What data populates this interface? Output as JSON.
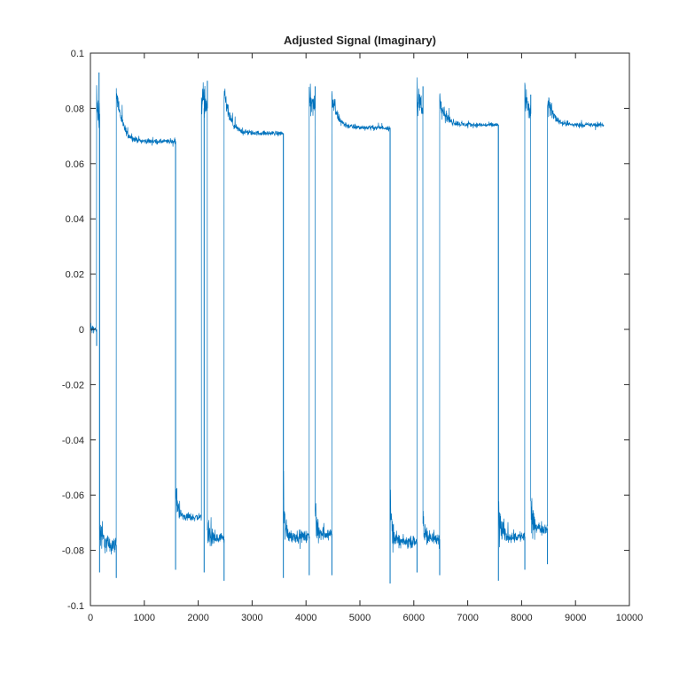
{
  "chart_data": {
    "type": "line",
    "title": "Adjusted Signal (Imaginary)",
    "xlabel": "",
    "ylabel": "",
    "xlim": [
      0,
      10000
    ],
    "ylim": [
      -0.1,
      0.1
    ],
    "x_ticks": [
      0,
      1000,
      2000,
      3000,
      4000,
      5000,
      6000,
      7000,
      8000,
      9000,
      10000
    ],
    "x_tick_labels": [
      "0",
      "1000",
      "2000",
      "3000",
      "4000",
      "5000",
      "6000",
      "7000",
      "8000",
      "9000",
      "10000"
    ],
    "y_ticks": [
      -0.1,
      -0.08,
      -0.06,
      -0.04,
      -0.02,
      0,
      0.02,
      0.04,
      0.06,
      0.08,
      0.1
    ],
    "y_tick_labels": [
      "-0.1",
      "-0.08",
      "-0.06",
      "-0.04",
      "-0.02",
      "0",
      "0.02",
      "0.04",
      "0.06",
      "0.08",
      "0.1"
    ],
    "grid": false,
    "line_color": "#0072BD",
    "series": [
      {
        "segments": [
          {
            "x_start": 0,
            "x_end": 115,
            "level": 0.0,
            "start": 0.0,
            "noise": 0.001
          },
          {
            "x_start": 115,
            "x_end": 170,
            "level": 0.078,
            "start": 0.08,
            "noise": 0.003
          },
          {
            "x_start": 170,
            "x_end": 480,
            "level": -0.078,
            "start": -0.07,
            "noise": 0.004
          },
          {
            "x_start": 480,
            "x_end": 1580,
            "level": 0.068,
            "start": 0.087,
            "noise": 0.0012
          },
          {
            "x_start": 1580,
            "x_end": 2060,
            "level": -0.068,
            "start": -0.058,
            "noise": 0.002
          },
          {
            "x_start": 2060,
            "x_end": 2170,
            "level": 0.08,
            "start": 0.087,
            "noise": 0.003
          },
          {
            "x_start": 2170,
            "x_end": 2480,
            "level": -0.076,
            "start": -0.072,
            "noise": 0.003
          },
          {
            "x_start": 2480,
            "x_end": 3580,
            "level": 0.071,
            "start": 0.086,
            "noise": 0.0012
          },
          {
            "x_start": 3580,
            "x_end": 4060,
            "level": -0.075,
            "start": -0.066,
            "noise": 0.003
          },
          {
            "x_start": 4060,
            "x_end": 4170,
            "level": 0.08,
            "start": 0.086,
            "noise": 0.003
          },
          {
            "x_start": 4170,
            "x_end": 4480,
            "level": -0.074,
            "start": -0.068,
            "noise": 0.003
          },
          {
            "x_start": 4480,
            "x_end": 5560,
            "level": 0.073,
            "start": 0.084,
            "noise": 0.0012
          },
          {
            "x_start": 5560,
            "x_end": 6060,
            "level": -0.077,
            "start": -0.064,
            "noise": 0.003
          },
          {
            "x_start": 6060,
            "x_end": 6170,
            "level": 0.078,
            "start": 0.086,
            "noise": 0.003
          },
          {
            "x_start": 6170,
            "x_end": 6480,
            "level": -0.076,
            "start": -0.07,
            "noise": 0.003
          },
          {
            "x_start": 6480,
            "x_end": 7570,
            "level": 0.074,
            "start": 0.084,
            "noise": 0.0012
          },
          {
            "x_start": 7570,
            "x_end": 8060,
            "level": -0.075,
            "start": -0.066,
            "noise": 0.003
          },
          {
            "x_start": 8060,
            "x_end": 8170,
            "level": 0.078,
            "start": 0.085,
            "noise": 0.003
          },
          {
            "x_start": 8170,
            "x_end": 8480,
            "level": -0.072,
            "start": -0.068,
            "noise": 0.003
          },
          {
            "x_start": 8480,
            "x_end": 9530,
            "level": 0.074,
            "start": 0.084,
            "noise": 0.0012
          }
        ],
        "peaks": [
          {
            "x": 160,
            "y": 0.093
          },
          {
            "x": 115,
            "y": -0.006
          },
          {
            "x": 170,
            "y": -0.088
          },
          {
            "x": 480,
            "y": -0.09
          },
          {
            "x": 1580,
            "y": -0.087
          },
          {
            "x": 2110,
            "y": -0.088
          },
          {
            "x": 2170,
            "y": 0.09
          },
          {
            "x": 2480,
            "y": -0.091
          },
          {
            "x": 3580,
            "y": -0.09
          },
          {
            "x": 4060,
            "y": -0.089
          },
          {
            "x": 4170,
            "y": 0.088
          },
          {
            "x": 4480,
            "y": -0.089
          },
          {
            "x": 5560,
            "y": -0.092
          },
          {
            "x": 6060,
            "y": -0.088
          },
          {
            "x": 6170,
            "y": 0.088
          },
          {
            "x": 6480,
            "y": -0.089
          },
          {
            "x": 7570,
            "y": -0.091
          },
          {
            "x": 8060,
            "y": -0.087
          },
          {
            "x": 8170,
            "y": 0.085
          },
          {
            "x": 8480,
            "y": -0.085
          },
          {
            "x": 9530,
            "y": 0.074
          }
        ]
      }
    ]
  }
}
